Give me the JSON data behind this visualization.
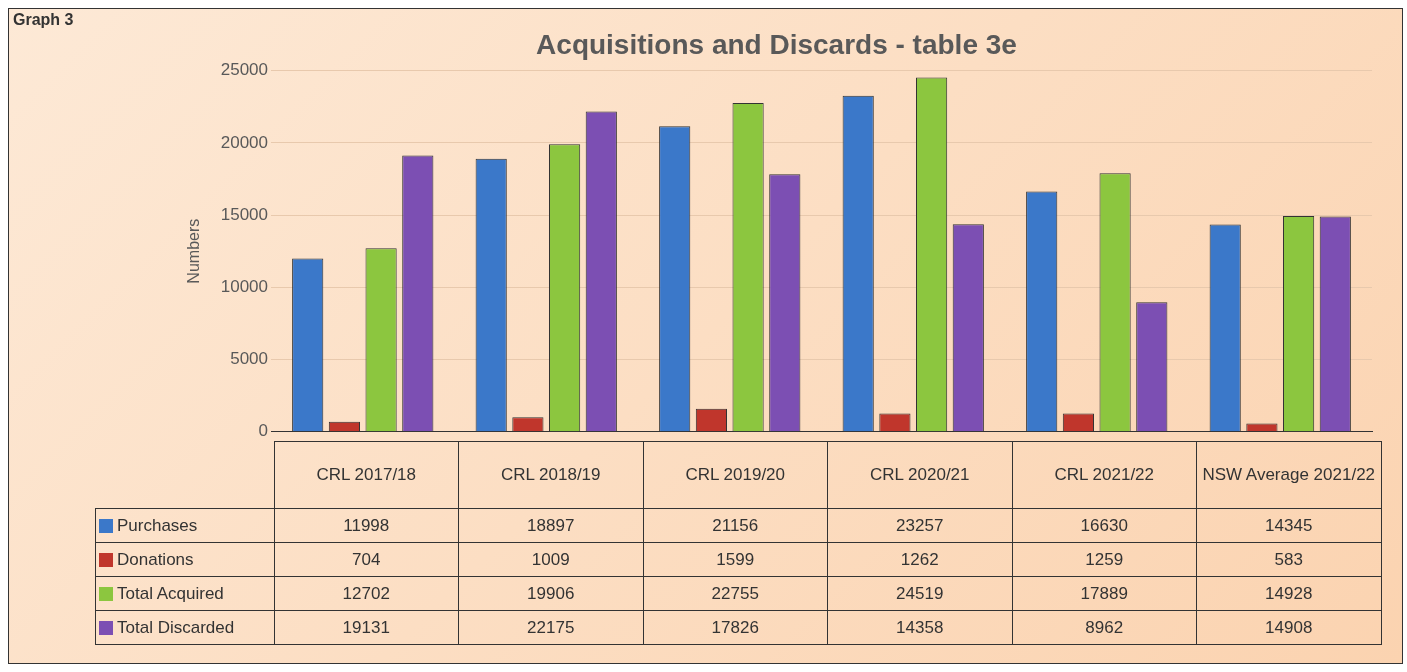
{
  "chart_data": {
    "type": "bar",
    "title": "Acquisitions and Discards - table 3e",
    "ylabel": "Numbers",
    "annotations": [
      "Graph 3"
    ],
    "categories": [
      "CRL 2017/18",
      "CRL 2018/19",
      "CRL 2019/20",
      "CRL 2020/21",
      "CRL 2021/22",
      "NSW Average 2021/22"
    ],
    "series": [
      {
        "name": "Purchases",
        "color": "#3b78c9",
        "values": [
          11998,
          18897,
          21156,
          23257,
          16630,
          14345
        ]
      },
      {
        "name": "Donations",
        "color": "#c0362c",
        "values": [
          704,
          1009,
          1599,
          1262,
          1259,
          583
        ]
      },
      {
        "name": "Total Acquired",
        "color": "#8cc63f",
        "values": [
          12702,
          19906,
          22755,
          24519,
          17889,
          14928
        ]
      },
      {
        "name": "Total Discarded",
        "color": "#7c4fb3",
        "values": [
          19131,
          22175,
          17826,
          14358,
          8962,
          14908
        ]
      }
    ],
    "ylim": [
      0,
      25000
    ],
    "yticks": [
      0,
      5000,
      10000,
      15000,
      20000,
      25000
    ],
    "grid": "y",
    "legend": "bottom",
    "data_labels": true
  }
}
